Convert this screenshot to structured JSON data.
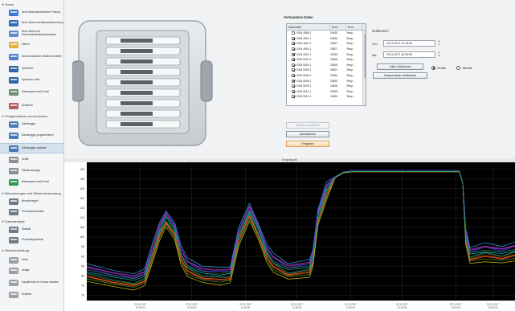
{
  "sidebar": {
    "sections": [
      {
        "label": "Home"
      },
      {
        "label": "Programmieren und Auslesen"
      },
      {
        "label": "Berechnungen und Wiederverwendung"
      },
      {
        "label": "Datenanalyse"
      },
      {
        "label": "Berichterstellung"
      }
    ],
    "items": [
      {
        "label": "Neue Bedarfsbetriebliche Prüfung",
        "icon": "shield-icon"
      },
      {
        "label": "Neue Studie mit Werkzeitberechnung",
        "icon": "document-icon"
      },
      {
        "label": "Neue Studie mit Sicherheitsbestandsaufnahme",
        "icon": "document-icon"
      },
      {
        "label": "Öffnen",
        "icon": "folder-icon"
      },
      {
        "label": "Aus vorhandenen Studien erstellen",
        "icon": "copy-icon"
      },
      {
        "label": "Speichern",
        "icon": "save-icon"
      },
      {
        "label": "Speichern unter",
        "icon": "save-as-icon"
      },
      {
        "label": "Datenexport nach Excel",
        "icon": "export-icon"
      },
      {
        "label": "Schließen",
        "icon": "close-icon"
      },
      {
        "label": "Datenlogger",
        "icon": "logger-icon"
      },
      {
        "label": "Datenlogger programmieren",
        "icon": "program-icon"
      },
      {
        "label": "Datenlogger auslesen",
        "icon": "read-icon"
      },
      {
        "label": "Grafik",
        "icon": "graph-icon"
      },
      {
        "label": "Tabellenanzeige",
        "icon": "table-icon"
      },
      {
        "label": "Datenexport nach Excel",
        "icon": "excel-icon"
      },
      {
        "label": "Berechnungen",
        "icon": "calc-icon"
      },
      {
        "label": "Prozesskennzahlen",
        "icon": "chart-icon"
      },
      {
        "label": "Statistik",
        "icon": "stats-icon"
      },
      {
        "label": "Prozessergebnisse",
        "icon": "gear-icon"
      },
      {
        "label": "Inhalt",
        "icon": "content-icon"
      },
      {
        "label": "Anlage",
        "icon": "attachment-icon"
      },
      {
        "label": "Hauptbericht im Voraus erstellen",
        "icon": "report-icon"
      },
      {
        "label": "Erstellen",
        "icon": "create-icon"
      }
    ]
  },
  "top": {
    "list_title": "Vorhandene Daten",
    "columns": [
      "Datenreihe",
      "Anru...",
      "Einh..."
    ],
    "rows": [
      {
        "name": "0334 4586 1",
        "c2": "20630",
        "c3": "Temp...",
        "checked": false
      },
      {
        "name": "0334 4591 1",
        "c2": "20630",
        "c3": "Temp...",
        "checked": true
      },
      {
        "name": "0334 4624 1",
        "c2": "20607",
        "c3": "Temp...",
        "checked": true
      },
      {
        "name": "0334 4992 1",
        "c2": "20607",
        "c3": "Temp...",
        "checked": true
      },
      {
        "name": "0334 5001 1",
        "c2": "20630",
        "c3": "Temp...",
        "checked": true
      },
      {
        "name": "0334 5003 1",
        "c2": "20606",
        "c3": "Temp...",
        "checked": true
      },
      {
        "name": "0334 5004 1",
        "c2": "20630",
        "c3": "Temp...",
        "checked": true
      },
      {
        "name": "0334 5005 1",
        "c2": "20607",
        "c3": "Temp...",
        "checked": true
      },
      {
        "name": "0334 5006 1",
        "c2": "20630",
        "c3": "Temp...",
        "checked": true
      },
      {
        "name": "0334 5008 1",
        "c2": "20630",
        "c3": "Temp...",
        "checked": true
      },
      {
        "name": "0334 5009 1",
        "c2": "20606",
        "c3": "Temp...",
        "checked": true
      },
      {
        "name": "0334 5011 1",
        "c2": "20635",
        "c3": "Temp...",
        "checked": true
      },
      {
        "name": "0334 5012 1",
        "c2": "20630",
        "c3": "Temp...",
        "checked": true
      }
    ],
    "buttons": {
      "select_all": "Spalten auswählen",
      "refresh": "Aktualisieren",
      "release": "Freigeben",
      "full_range": "Voller Zeitbereich",
      "saved_range": "Gespeicherter Zeitbereich"
    },
    "time_range": {
      "title": "Zeitbereich",
      "from_label": "Von",
      "from_value": "20.11.2017 10:15:00",
      "to_label": "Bis",
      "to_value": "20.11.2017 15:25:00"
    },
    "view_modes": [
      {
        "label": "Grafik",
        "selected": true
      },
      {
        "label": "Tabelle",
        "selected": false
      }
    ]
  },
  "chart_header": "Ereignisgrafik",
  "chart_data": {
    "type": "line",
    "y_ticks": [
      70,
      75,
      80,
      85,
      90,
      95,
      100,
      105,
      110,
      115,
      120,
      125,
      130,
      135
    ],
    "ylim": [
      68,
      137
    ],
    "x_ticks": [
      {
        "date": "20.11.2017",
        "time": "10:00:00"
      },
      {
        "date": "20.11.2017",
        "time": "10:30:00"
      },
      {
        "date": "20.11.2017",
        "time": "11:00:00"
      },
      {
        "date": "20.11.2017",
        "time": "11:30:00"
      },
      {
        "date": "20.11.2017",
        "time": "12:00:00"
      },
      {
        "date": "20.11.2017",
        "time": "12:30:00"
      },
      {
        "date": "20.11.2017",
        "time": "13:00:00"
      },
      {
        "date": "20.11.2017",
        "time": "13:30:00"
      }
    ],
    "x_domain": [
      0,
      100
    ],
    "base_curve": [
      [
        0,
        82
      ],
      [
        6,
        80
      ],
      [
        11,
        78
      ],
      [
        13.5,
        80
      ],
      [
        15.5,
        92
      ],
      [
        17,
        103
      ],
      [
        18.5,
        111
      ],
      [
        20.5,
        104
      ],
      [
        22,
        90
      ],
      [
        23.5,
        84
      ],
      [
        27,
        82
      ],
      [
        31,
        80
      ],
      [
        33.5,
        82
      ],
      [
        35.5,
        100
      ],
      [
        38,
        113
      ],
      [
        40,
        105
      ],
      [
        42,
        92
      ],
      [
        43.5,
        86
      ],
      [
        47,
        84
      ],
      [
        52,
        84
      ],
      [
        52.8,
        90
      ],
      [
        54,
        112
      ],
      [
        56,
        124
      ],
      [
        58,
        131
      ],
      [
        60,
        133.5
      ],
      [
        62,
        134
      ],
      [
        87,
        134
      ],
      [
        87.8,
        128
      ],
      [
        88.5,
        102
      ],
      [
        89.5,
        92
      ],
      [
        93,
        91.5
      ],
      [
        97,
        92
      ],
      [
        100,
        92
      ]
    ],
    "series_colors": [
      "#00c8c8",
      "#ff8a00",
      "#1a55e0",
      "#4aa02c",
      "#c33b9e",
      "#7a4a1e",
      "#666666",
      "#ff3a3a",
      "#2aa8ff",
      "#d8c000",
      "#8a2be2",
      "#00a07a"
    ],
    "series_offsets": [
      0,
      -2.5,
      2,
      -4,
      3,
      -1.5,
      1,
      -3,
      4.5,
      -5.5,
      2.5,
      -1
    ]
  }
}
